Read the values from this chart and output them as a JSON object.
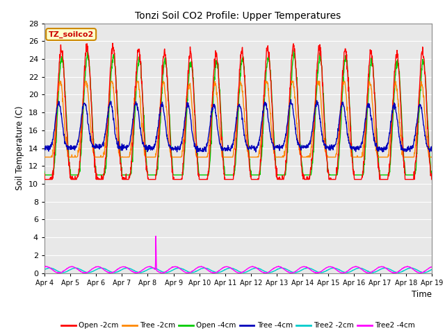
{
  "title": "Tonzi Soil CO2 Profile: Upper Temperatures",
  "xlabel": "Time",
  "ylabel": "Soil Temperature (C)",
  "annotation_text": "TZ_soilco2",
  "ylim": [
    0,
    28
  ],
  "yticks": [
    0,
    2,
    4,
    6,
    8,
    10,
    12,
    14,
    16,
    18,
    20,
    22,
    24,
    26,
    28
  ],
  "background_color": "#e8e8e8",
  "fig_bg_color": "#ffffff",
  "legend_entries": [
    "Open -2cm",
    "Tree -2cm",
    "Open -4cm",
    "Tree -4cm",
    "Tree2 -2cm",
    "Tree2 -4cm"
  ],
  "line_colors": [
    "#ff0000",
    "#ff8800",
    "#00cc00",
    "#0000bb",
    "#00cccc",
    "#ff00ff"
  ],
  "line_widths": [
    1.0,
    1.0,
    1.0,
    1.0,
    1.0,
    1.0
  ],
  "date_labels": [
    "Apr 4",
    "Apr 5",
    "Apr 6",
    "Apr 7",
    "Apr 8",
    "Apr 9",
    "Apr 10",
    "Apr 11",
    "Apr 12",
    "Apr 13",
    "Apr 14",
    "Apr 15",
    "Apr 16",
    "Apr 17",
    "Apr 18",
    "Apr 19"
  ]
}
